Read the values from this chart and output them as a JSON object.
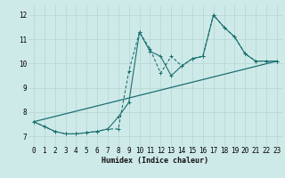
{
  "xlabel": "Humidex (Indice chaleur)",
  "bg_color": "#ceeae8",
  "grid_color": "#b8d8d6",
  "line_color": "#1a7070",
  "xlim": [
    -0.5,
    23.5
  ],
  "ylim": [
    6.6,
    12.4
  ],
  "xticks": [
    0,
    1,
    2,
    3,
    4,
    5,
    6,
    7,
    8,
    9,
    10,
    11,
    12,
    13,
    14,
    15,
    16,
    17,
    18,
    19,
    20,
    21,
    22,
    23
  ],
  "yticks": [
    7,
    8,
    9,
    10,
    11,
    12
  ],
  "series1_x": [
    0,
    1,
    2,
    3,
    4,
    5,
    6,
    7,
    8,
    9,
    10,
    11,
    12,
    13,
    14,
    15,
    16,
    17,
    18,
    19,
    20,
    21,
    22,
    23
  ],
  "series1_y": [
    7.6,
    7.4,
    7.2,
    7.1,
    7.1,
    7.15,
    7.2,
    7.3,
    7.8,
    8.4,
    11.3,
    10.5,
    10.3,
    9.5,
    9.9,
    10.2,
    10.3,
    12.0,
    11.5,
    11.1,
    10.4,
    10.1,
    10.1,
    10.1
  ],
  "series2_x": [
    0,
    1,
    2,
    3,
    4,
    5,
    6,
    7,
    8,
    9,
    10,
    11,
    12,
    13,
    14,
    15,
    16,
    17,
    18,
    19,
    20,
    21,
    22,
    23
  ],
  "series2_y": [
    7.6,
    7.4,
    7.2,
    7.1,
    7.1,
    7.15,
    7.2,
    7.3,
    7.3,
    9.7,
    11.3,
    10.6,
    9.6,
    10.3,
    9.9,
    10.2,
    10.3,
    12.0,
    11.5,
    11.1,
    10.4,
    10.1,
    10.1,
    10.1
  ],
  "series3_x": [
    0,
    23
  ],
  "series3_y": [
    7.6,
    10.1
  ]
}
